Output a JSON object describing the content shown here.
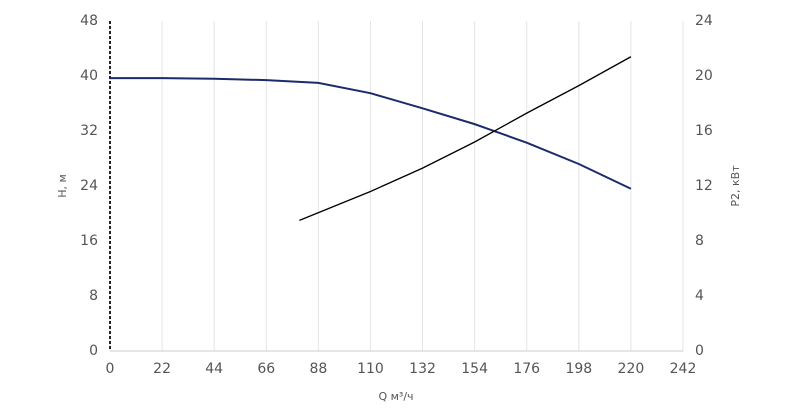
{
  "chart_data": {
    "type": "line",
    "x_label": "Q м³/ч",
    "y_label": "H, м",
    "y2_label": "P2, кВт",
    "xlim": [
      0,
      242
    ],
    "xticks": [
      0,
      22,
      44,
      66,
      88,
      110,
      132,
      154,
      176,
      198,
      220,
      242
    ],
    "ylim": [
      0,
      48
    ],
    "yticks": [
      0,
      8,
      16,
      24,
      32,
      40,
      48
    ],
    "y2lim": [
      0,
      24
    ],
    "y2ticks": [
      0,
      4,
      8,
      12,
      16,
      20,
      24
    ],
    "grid": "x",
    "series": [
      {
        "color": "#1c2b6b",
        "x": [
          0,
          22,
          44,
          66,
          88,
          110,
          132,
          154,
          176,
          198,
          220
        ],
        "values": [
          39.7,
          39.7,
          39.6,
          39.4,
          39.0,
          37.5,
          35.3,
          33.0,
          30.3,
          27.2,
          23.6
        ]
      },
      {
        "color": "#000000",
        "axis": "y2",
        "x": [
          80,
          110,
          132,
          154,
          176,
          198,
          220
        ],
        "values": [
          9.5,
          11.6,
          13.3,
          15.2,
          17.3,
          19.3,
          21.4
        ]
      }
    ]
  }
}
